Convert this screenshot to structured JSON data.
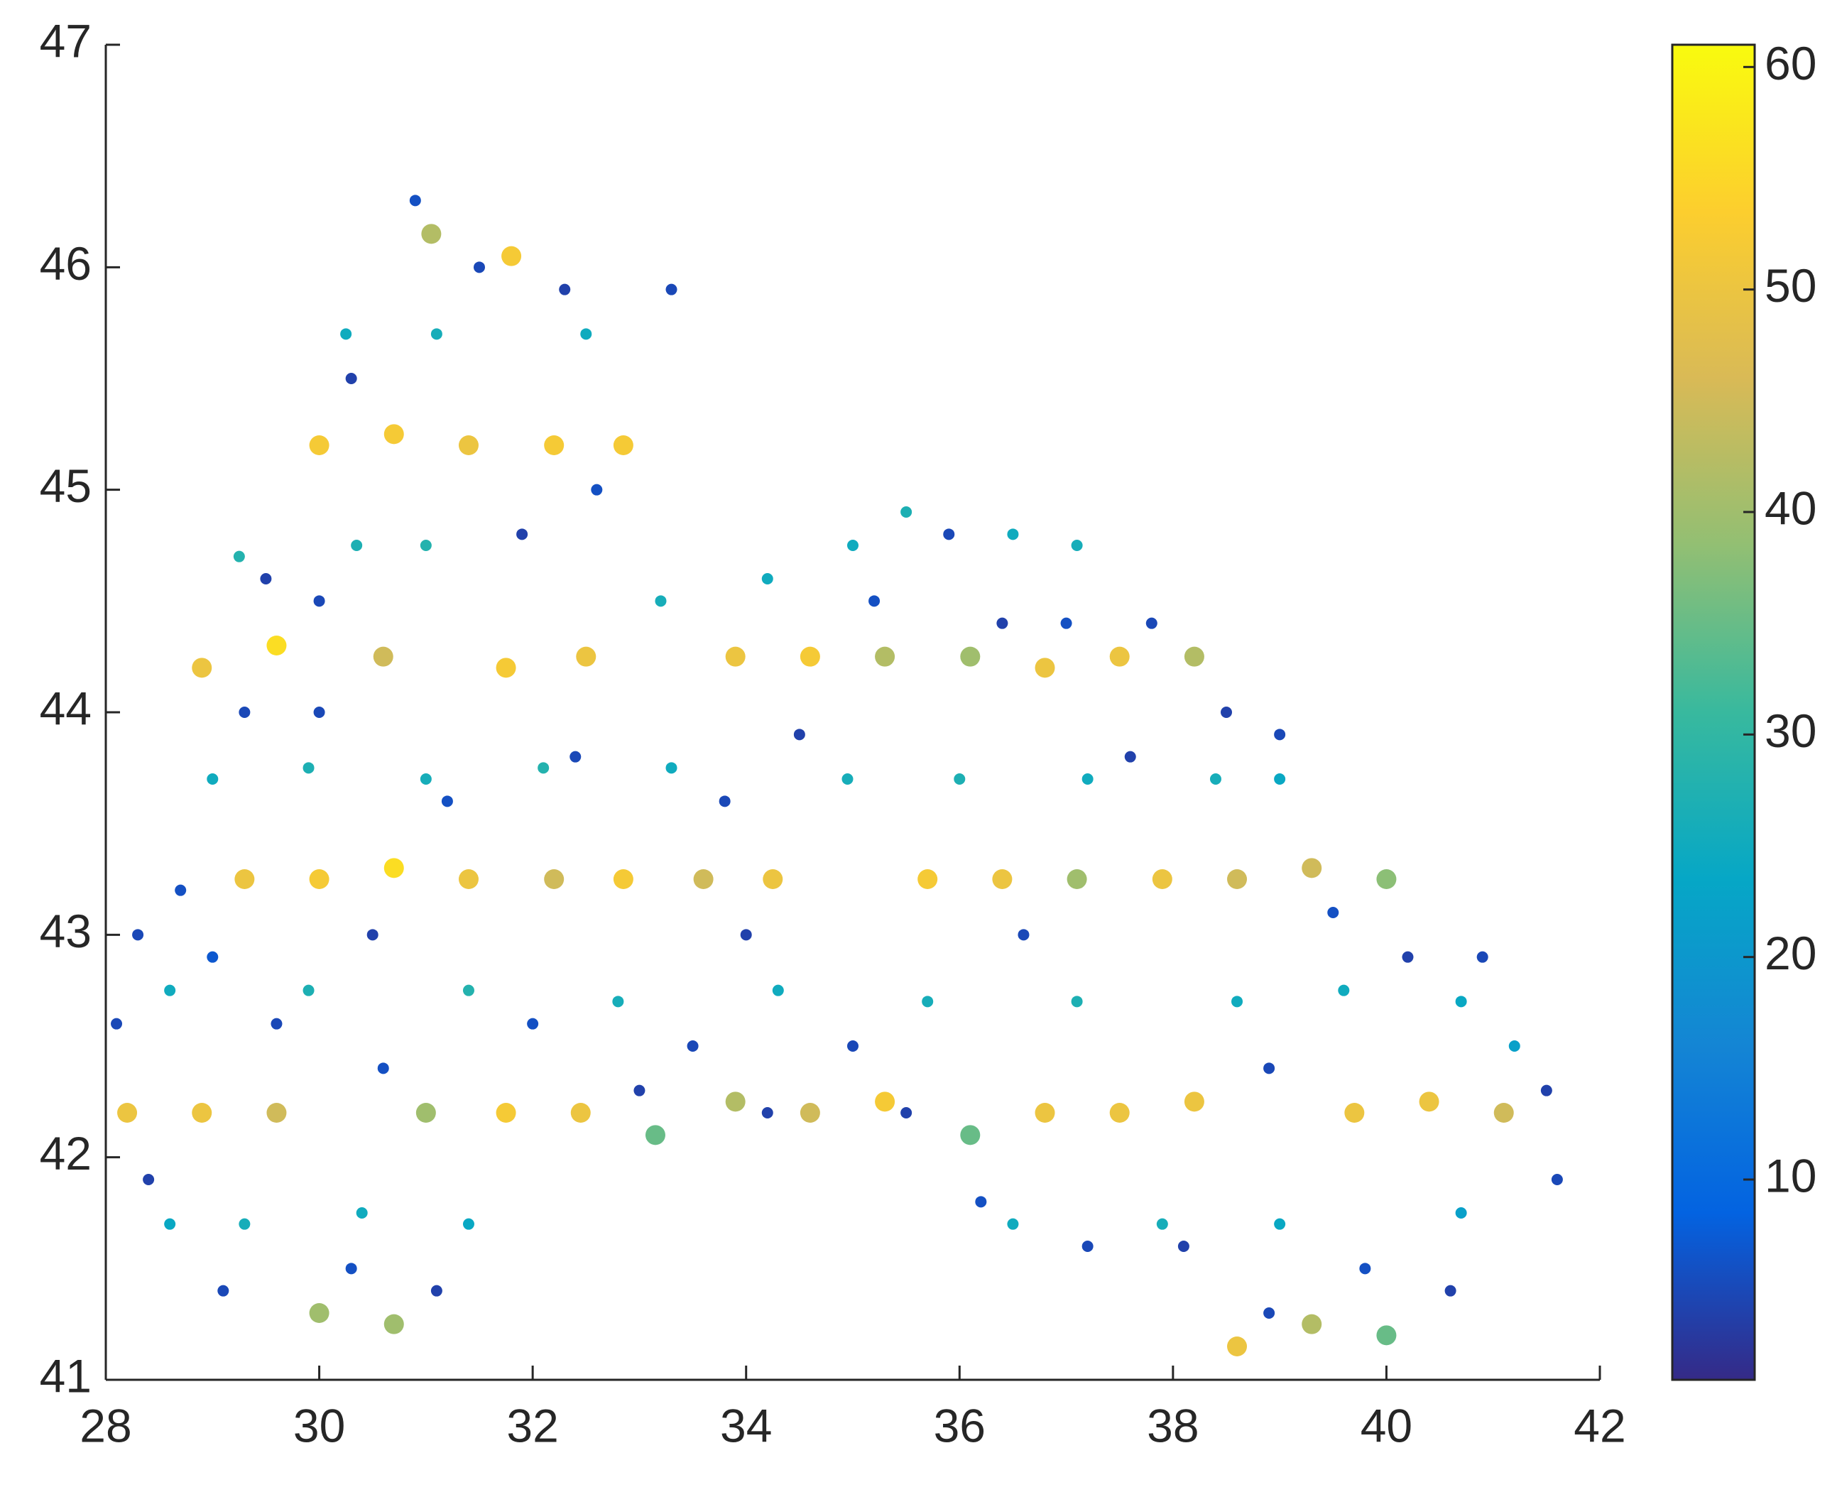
{
  "chart_data": {
    "type": "scatter",
    "xlim": [
      28,
      42
    ],
    "ylim": [
      41,
      47
    ],
    "xticks": [
      28,
      30,
      32,
      34,
      36,
      38,
      40,
      42
    ],
    "yticks": [
      41,
      42,
      43,
      44,
      45,
      46,
      47
    ],
    "colorbar": {
      "clim": [
        1,
        61
      ],
      "ticks": [
        10,
        20,
        30,
        40,
        50,
        60
      ]
    },
    "colormap": [
      "#352a87",
      "#0363e1",
      "#1485d4",
      "#06a7c6",
      "#38b99e",
      "#92bf73",
      "#d9ba56",
      "#fcce2e",
      "#f9fb0e"
    ],
    "x": [
      28.9,
      29.6,
      30.6,
      31.75,
      32.5,
      33.9,
      34.6,
      35.3,
      36.1,
      36.8,
      37.5,
      38.2,
      29.3,
      30.0,
      30.7,
      31.4,
      32.2,
      32.85,
      33.6,
      34.25,
      35.7,
      36.4,
      37.1,
      37.9,
      38.6,
      39.3,
      40.0,
      28.2,
      28.9,
      29.6,
      31.0,
      31.75,
      32.45,
      33.15,
      33.9,
      34.6,
      35.3,
      36.1,
      36.8,
      37.5,
      38.2,
      39.7,
      40.4,
      41.1,
      30.0,
      30.7,
      31.4,
      32.2,
      32.85,
      31.05,
      31.8,
      30.0,
      30.7,
      38.6,
      39.3,
      40.0,
      29.25,
      30.25,
      30.35,
      31.0,
      31.1,
      32.5,
      33.2,
      34.2,
      35.0,
      35.5,
      36.5,
      37.1,
      29.0,
      29.9,
      31.0,
      32.1,
      33.3,
      34.95,
      36.0,
      37.2,
      38.4,
      39.0,
      39.6,
      40.7,
      41.2,
      28.6,
      29.9,
      31.4,
      32.8,
      34.3,
      35.7,
      37.1,
      38.6,
      28.6,
      29.3,
      30.4,
      31.4,
      36.5,
      37.9,
      39.0,
      40.7,
      28.3,
      28.7,
      29.5,
      30.0,
      30.3,
      30.9,
      31.5,
      32.3,
      33.3,
      32.6,
      31.9,
      29.3,
      29.0,
      29.6,
      30.5,
      31.2,
      32.4,
      33.0,
      32.0,
      33.8,
      34.5,
      35.2,
      35.9,
      36.4,
      37.0,
      37.8,
      38.5,
      39.0,
      39.5,
      40.2,
      40.9,
      41.5,
      41.6,
      40.6,
      39.8,
      38.9,
      38.1,
      37.2,
      36.2,
      35.5,
      35.0,
      34.2,
      33.5,
      31.1,
      30.3,
      29.1,
      28.4,
      28.1,
      30.6,
      36.6,
      37.6,
      38.9,
      34.0,
      30.0
    ],
    "y": [
      44.2,
      44.3,
      44.25,
      44.2,
      44.25,
      44.25,
      44.25,
      44.25,
      44.25,
      44.2,
      44.25,
      44.25,
      43.25,
      43.25,
      43.3,
      43.25,
      43.25,
      43.25,
      43.25,
      43.25,
      43.25,
      43.25,
      43.25,
      43.25,
      43.25,
      43.3,
      43.25,
      42.2,
      42.2,
      42.2,
      42.2,
      42.2,
      42.2,
      42.1,
      42.25,
      42.2,
      42.25,
      42.1,
      42.2,
      42.2,
      42.25,
      42.2,
      42.25,
      42.2,
      45.2,
      45.25,
      45.2,
      45.2,
      45.2,
      46.15,
      46.05,
      41.3,
      41.25,
      41.15,
      41.25,
      41.2,
      44.7,
      45.7,
      44.75,
      44.75,
      45.7,
      45.7,
      44.5,
      44.6,
      44.75,
      44.9,
      44.8,
      44.75,
      43.7,
      43.75,
      43.7,
      43.75,
      43.75,
      43.7,
      43.7,
      43.7,
      43.7,
      43.7,
      42.75,
      42.7,
      42.5,
      42.75,
      42.75,
      42.75,
      42.7,
      42.75,
      42.7,
      42.7,
      42.7,
      41.7,
      41.7,
      41.75,
      41.7,
      41.7,
      41.7,
      41.7,
      41.75,
      43.0,
      43.2,
      44.6,
      44.5,
      45.5,
      46.3,
      46.0,
      45.9,
      45.9,
      45.0,
      44.8,
      44.0,
      42.9,
      42.6,
      43.0,
      43.6,
      43.8,
      42.3,
      42.6,
      43.6,
      43.9,
      44.5,
      44.8,
      44.4,
      44.4,
      44.4,
      44.0,
      43.9,
      43.1,
      42.9,
      42.9,
      42.3,
      41.9,
      41.4,
      41.5,
      41.3,
      41.6,
      41.6,
      41.8,
      42.2,
      42.5,
      42.2,
      42.5,
      41.4,
      41.5,
      41.4,
      41.9,
      42.6,
      42.4,
      43.0,
      43.8,
      42.4,
      43.0,
      44.0
    ],
    "c": [
      50,
      56,
      45,
      52,
      50,
      50,
      52,
      42,
      40,
      50,
      50,
      42,
      50,
      52,
      56,
      50,
      45,
      52,
      45,
      50,
      52,
      50,
      40,
      50,
      45,
      45,
      38,
      50,
      50,
      45,
      40,
      52,
      50,
      35,
      42,
      45,
      52,
      35,
      50,
      50,
      50,
      50,
      50,
      45,
      52,
      52,
      50,
      52,
      52,
      42,
      52,
      40,
      40,
      50,
      42,
      35,
      28,
      25,
      27,
      28,
      26,
      25,
      26,
      25,
      25,
      27,
      25,
      26,
      25,
      27,
      26,
      28,
      25,
      26,
      27,
      25,
      26,
      24,
      25,
      24,
      22,
      25,
      27,
      28,
      26,
      25,
      26,
      27,
      25,
      24,
      26,
      25,
      24,
      25,
      26,
      24,
      22,
      5,
      6,
      4,
      5,
      4,
      6,
      5,
      4,
      5,
      6,
      4,
      5,
      7,
      5,
      4,
      6,
      5,
      4,
      6,
      5,
      4,
      6,
      5,
      4,
      6,
      5,
      4,
      5,
      6,
      4,
      5,
      4,
      5,
      4,
      6,
      5,
      4,
      5,
      6,
      4,
      5,
      4,
      5,
      4,
      6,
      5,
      4,
      5,
      6,
      5,
      4,
      5,
      4,
      5
    ]
  }
}
